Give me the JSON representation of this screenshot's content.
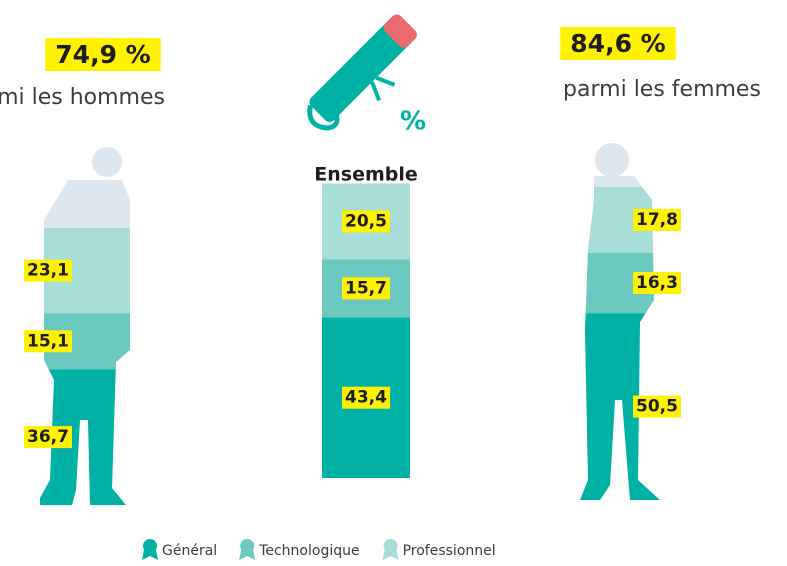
{
  "chart_data": {
    "type": "bar",
    "stacked": true,
    "categories": [
      "parmi les hommes",
      "Ensemble",
      "parmi les femmes"
    ],
    "totals": [
      74.9,
      null,
      84.6
    ],
    "total_labels": [
      "74,9 %",
      null,
      "84,6 %"
    ],
    "icon_label": "%",
    "series": [
      {
        "name": "Général",
        "color": "#00b2a5",
        "values": [
          36.7,
          43.4,
          50.5
        ],
        "value_labels": [
          "36,7",
          "43,4",
          "50,5"
        ]
      },
      {
        "name": "Technologique",
        "color": "#6cc9bf",
        "values": [
          15.1,
          15.7,
          16.3
        ],
        "value_labels": [
          "15,1",
          "15,7",
          "16,3"
        ]
      },
      {
        "name": "Professionnel",
        "color": "#a6ddd6",
        "values": [
          23.1,
          20.5,
          17.8
        ],
        "value_labels": [
          "23,1",
          "20,5",
          "17,8"
        ]
      }
    ]
  }
}
